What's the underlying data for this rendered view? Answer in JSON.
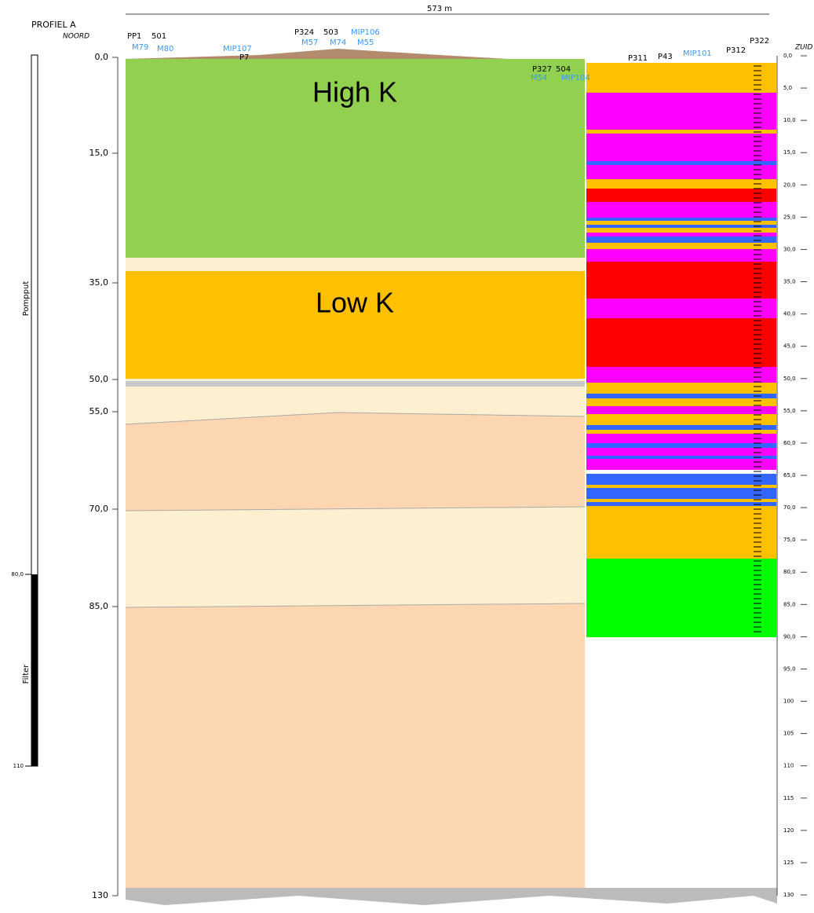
{
  "header": {
    "title": "PROFIEL A",
    "left_direction": "NOORD",
    "right_direction": "ZUID",
    "length": "573 m"
  },
  "wells": [
    {
      "label": "PP1",
      "kind": "p"
    },
    {
      "label": "501",
      "kind": "p"
    },
    {
      "label": "M79",
      "kind": "m"
    },
    {
      "label": "M80",
      "kind": "m"
    },
    {
      "label": "MIP107",
      "kind": "m"
    },
    {
      "label": "P7",
      "kind": "p"
    },
    {
      "label": "P324",
      "kind": "p"
    },
    {
      "label": "503",
      "kind": "p"
    },
    {
      "label": "MIP106",
      "kind": "m"
    },
    {
      "label": "M57",
      "kind": "m"
    },
    {
      "label": "M74",
      "kind": "m"
    },
    {
      "label": "M55",
      "kind": "m"
    },
    {
      "label": "P327",
      "kind": "p"
    },
    {
      "label": "504",
      "kind": "p"
    },
    {
      "label": "M54",
      "kind": "m"
    },
    {
      "label": "MIP104",
      "kind": "m"
    },
    {
      "label": "P311",
      "kind": "p"
    },
    {
      "label": "P43",
      "kind": "p"
    },
    {
      "label": "MIP101",
      "kind": "m"
    },
    {
      "label": "P312",
      "kind": "p"
    },
    {
      "label": "P322",
      "kind": "p"
    }
  ],
  "depth_labels": [
    "0,0",
    "15,0",
    "35,0",
    "50,0",
    "55,0",
    "70,0",
    "85,0",
    "130"
  ],
  "right_scale": [
    "0,0",
    "5,0",
    "10,0",
    "15,0",
    "20,0",
    "25,0",
    "30,0",
    "35,0",
    "40,0",
    "45,0",
    "50,0",
    "55,0",
    "60,0",
    "65,0",
    "70,0",
    "75,0",
    "80,0",
    "85,0",
    "90,0",
    "95,0",
    "100",
    "105",
    "110",
    "115",
    "120",
    "125",
    "130"
  ],
  "well_column": {
    "top_label": "Pompput",
    "bottom_label": "Filter",
    "ticks": [
      "80,0",
      "110"
    ]
  },
  "zones": {
    "high": "High K",
    "low": "Low K"
  }
}
